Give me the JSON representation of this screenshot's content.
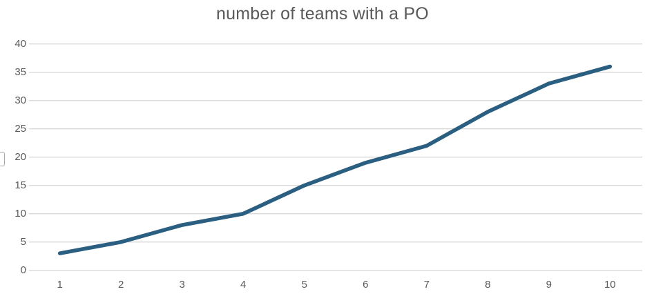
{
  "title": "number of teams with a PO",
  "chart_data": {
    "type": "line",
    "title": "number of teams with a PO",
    "x": [
      1,
      2,
      3,
      4,
      5,
      6,
      7,
      8,
      9,
      10
    ],
    "series": [
      {
        "name": "number of teams with a PO",
        "values": [
          3,
          5,
          8,
          10,
          15,
          19,
          22,
          28,
          33,
          36
        ]
      }
    ],
    "xlabel": "",
    "ylabel": "",
    "ylim": [
      0,
      40
    ],
    "y_ticks": [
      0,
      5,
      10,
      15,
      20,
      25,
      30,
      35,
      40
    ],
    "x_tick_labels": [
      "1",
      "2",
      "3",
      "4",
      "5",
      "6",
      "7",
      "8",
      "9",
      "10"
    ],
    "grid": "horizontal",
    "legend": "none",
    "line_color": "#2B5F82",
    "gridline_color": "#D9D9D9",
    "text_color": "#595959",
    "background_color": "#FFFFFF"
  }
}
